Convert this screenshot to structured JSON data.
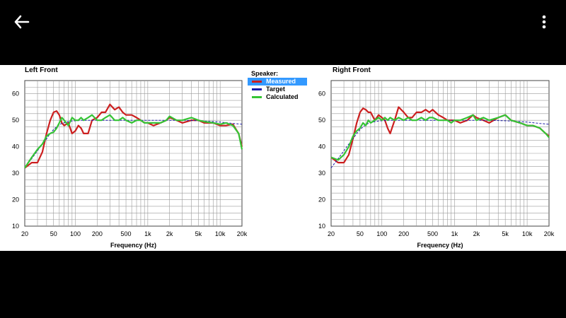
{
  "topbar": {
    "back_icon": "arrow-left-icon",
    "more_icon": "more-vertical-icon"
  },
  "colors": {
    "measured": "#cc1f1f",
    "target": "#1a1aa8",
    "calculated": "#35c435",
    "grid": "#9a9a9a"
  },
  "legend": {
    "title": "Speaker:",
    "items": [
      {
        "label": "Measured",
        "color": "#cc1f1f",
        "selected": true
      },
      {
        "label": "Target",
        "color": "#1a1aa8",
        "selected": false
      },
      {
        "label": "Calculated",
        "color": "#35c435",
        "selected": false
      }
    ]
  },
  "chart_data": [
    {
      "type": "line",
      "title": "Left Front",
      "xlabel": "Frequency (Hz)",
      "ylabel": "",
      "xscale": "log",
      "xlim": [
        20,
        20000
      ],
      "ylim": [
        10,
        65
      ],
      "grid": true,
      "xticks": [
        20,
        50,
        100,
        200,
        500,
        1000,
        2000,
        5000,
        10000,
        20000
      ],
      "xtick_labels": [
        "20",
        "50",
        "100",
        "200",
        "500",
        "1k",
        "2k",
        "5k",
        "10k",
        "20k"
      ],
      "yticks": [
        10,
        20,
        30,
        40,
        50,
        60
      ],
      "ytick_labels": [
        "10",
        "20",
        "30",
        "40",
        "50",
        "60"
      ],
      "x": [
        20,
        25,
        30,
        35,
        40,
        45,
        50,
        55,
        60,
        65,
        70,
        80,
        90,
        100,
        110,
        120,
        130,
        150,
        170,
        200,
        230,
        260,
        300,
        350,
        400,
        450,
        500,
        600,
        700,
        800,
        900,
        1000,
        1200,
        1500,
        1800,
        2000,
        2500,
        3000,
        4000,
        5000,
        6000,
        8000,
        10000,
        12000,
        15000,
        18000,
        20000
      ],
      "series": [
        {
          "name": "Measured",
          "values": [
            32,
            34,
            34,
            38,
            45,
            50,
            53,
            53.5,
            52,
            49,
            48,
            49,
            45,
            46,
            48,
            47,
            45,
            45,
            50,
            51,
            53,
            53,
            56,
            54,
            55,
            53,
            52,
            52,
            51,
            50,
            49,
            49,
            48,
            49,
            50,
            51,
            50,
            49,
            50,
            50,
            49,
            49,
            48,
            48,
            48.5,
            45,
            40
          ]
        },
        {
          "name": "Target",
          "values": [
            32,
            35.5,
            38.5,
            41,
            43,
            45,
            46.5,
            47.5,
            48.3,
            48.8,
            49.1,
            49.5,
            49.7,
            49.8,
            49.9,
            50,
            50,
            50,
            50,
            50,
            50,
            50,
            50,
            50,
            50,
            50,
            50,
            50,
            50,
            50,
            50,
            50,
            50,
            50,
            50,
            50,
            50,
            50,
            49.9,
            49.8,
            49.7,
            49.5,
            49.3,
            49.1,
            48.8,
            48.6,
            48.5
          ]
        },
        {
          "name": "Calculated",
          "values": [
            32,
            36,
            39,
            41,
            44,
            45,
            45.5,
            47,
            49,
            51,
            50,
            48,
            51,
            50,
            50,
            51,
            50,
            51,
            52,
            50,
            50,
            51,
            52,
            50,
            50,
            51,
            50,
            49,
            50,
            50,
            49,
            49,
            49,
            49,
            50,
            51.5,
            50,
            50,
            51,
            50,
            49.5,
            49,
            48.5,
            49,
            48,
            45,
            39
          ]
        }
      ]
    },
    {
      "type": "line",
      "title": "Right Front",
      "xlabel": "Frequency (Hz)",
      "ylabel": "",
      "xscale": "log",
      "xlim": [
        20,
        20000
      ],
      "ylim": [
        10,
        65
      ],
      "grid": true,
      "xticks": [
        20,
        50,
        100,
        200,
        500,
        1000,
        2000,
        5000,
        10000,
        20000
      ],
      "xtick_labels": [
        "20",
        "50",
        "100",
        "200",
        "500",
        "1k",
        "2k",
        "5k",
        "10k",
        "20k"
      ],
      "yticks": [
        10,
        20,
        30,
        40,
        50,
        60
      ],
      "ytick_labels": [
        "10",
        "20",
        "30",
        "40",
        "50",
        "60"
      ],
      "x": [
        20,
        25,
        30,
        35,
        40,
        45,
        50,
        55,
        60,
        65,
        70,
        80,
        90,
        100,
        110,
        120,
        130,
        150,
        170,
        200,
        230,
        260,
        300,
        350,
        400,
        450,
        500,
        600,
        700,
        800,
        900,
        1000,
        1200,
        1500,
        1800,
        2000,
        2500,
        3000,
        4000,
        5000,
        6000,
        8000,
        10000,
        12000,
        15000,
        18000,
        20000
      ],
      "series": [
        {
          "name": "Measured",
          "values": [
            36,
            34,
            34,
            37,
            43,
            49,
            53,
            54.5,
            54,
            53,
            53,
            50,
            52,
            51,
            50,
            47,
            45,
            50,
            55,
            53,
            51,
            51,
            53,
            53,
            54,
            53,
            54,
            52,
            51,
            50,
            50,
            50,
            49,
            50,
            52,
            51,
            50,
            49,
            51,
            52,
            50,
            49,
            48,
            48,
            47,
            45,
            44
          ]
        },
        {
          "name": "Target",
          "values": [
            32,
            35.5,
            38.5,
            41,
            43,
            45,
            46.5,
            47.5,
            48.3,
            48.8,
            49.1,
            49.5,
            49.7,
            49.8,
            49.9,
            50,
            50,
            50,
            50,
            50,
            50,
            50,
            50,
            50,
            50,
            50,
            50,
            50,
            50,
            50,
            50,
            50,
            50,
            50,
            50,
            50,
            50,
            50,
            49.9,
            49.8,
            49.7,
            49.5,
            49.3,
            49.1,
            48.8,
            48.6,
            48.5
          ]
        },
        {
          "name": "Calculated",
          "values": [
            36,
            35,
            37,
            40,
            44,
            46,
            47,
            49,
            48,
            50,
            49,
            50,
            51,
            50,
            51,
            50,
            51,
            50,
            51,
            50,
            51,
            50,
            50,
            51,
            50,
            51,
            51,
            50,
            50,
            50,
            49,
            50,
            50,
            51,
            52,
            50,
            51,
            50,
            51,
            52,
            50,
            49,
            48,
            48,
            47,
            45,
            43.5
          ]
        }
      ]
    }
  ]
}
